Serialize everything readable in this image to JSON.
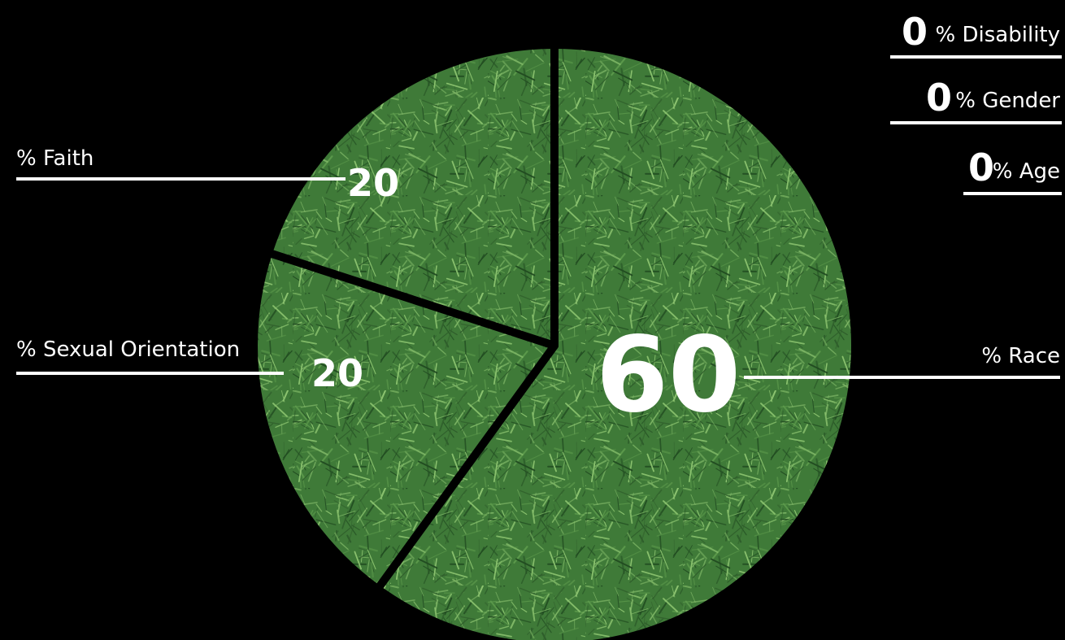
{
  "colors": {
    "background": "#000000",
    "grass_base": "#3f7a38",
    "grass_light": "#7fb866",
    "grass_dark": "#1f4a1f",
    "separator": "#000000",
    "text": "#ffffff"
  },
  "chart_data": {
    "type": "pie",
    "categories": [
      "Race",
      "Sexual Orientation",
      "Faith"
    ],
    "values": [
      60,
      20,
      20
    ],
    "value_labels": [
      "60",
      "20",
      "20"
    ],
    "slice_labels": [
      "% Race",
      "% Sexual Orientation",
      "% Faith"
    ],
    "zero_categories": [
      {
        "value": "0",
        "label": "% Disability"
      },
      {
        "value": "0",
        "label": "% Gender"
      },
      {
        "value": "0",
        "label": "% Age"
      }
    ],
    "start": "12 o'clock",
    "direction": "clockwise"
  }
}
